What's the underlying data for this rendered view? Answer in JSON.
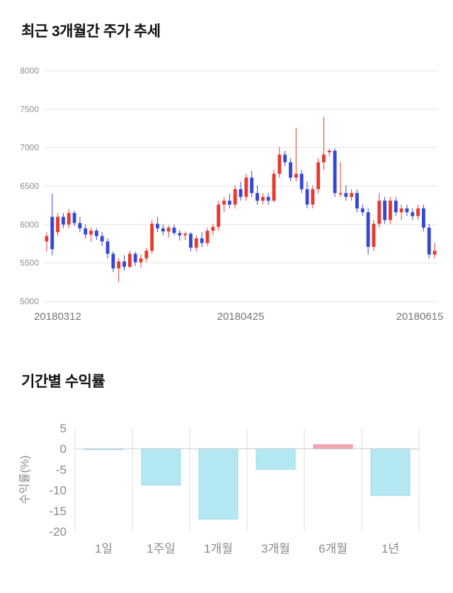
{
  "sections": {
    "price_trend": {
      "title": "최근 3개월간 주가 추세"
    },
    "returns": {
      "title": "기간별 수익률"
    }
  },
  "chart_data": [
    {
      "type": "candlestick",
      "title": "최근 3개월간 주가 추세",
      "ylim": [
        5000,
        8000
      ],
      "yticks": [
        8000,
        7500,
        7000,
        6500,
        6000,
        5500,
        5000
      ],
      "xtick_labels": [
        "20180312",
        "20180425",
        "20180615"
      ],
      "xtick_positions": [
        0.035,
        0.5,
        0.955
      ],
      "up_color": "#e8392f",
      "down_color": "#3547d6",
      "grid_color": "#e4e4e4",
      "axis_text_color": "#8e8e8e",
      "xaxis_text_color": "#777777",
      "candles_ohlc": [
        [
          5780,
          5900,
          5650,
          5850
        ],
        [
          6100,
          6400,
          5600,
          5680
        ],
        [
          5900,
          6150,
          5850,
          6100
        ],
        [
          6100,
          6150,
          5950,
          6000
        ],
        [
          6000,
          6200,
          5950,
          6150
        ],
        [
          6150,
          6180,
          5980,
          6020
        ],
        [
          6020,
          6100,
          5900,
          5950
        ],
        [
          5950,
          6000,
          5820,
          5870
        ],
        [
          5870,
          5960,
          5780,
          5920
        ],
        [
          5920,
          5950,
          5800,
          5850
        ],
        [
          5850,
          5900,
          5720,
          5780
        ],
        [
          5780,
          5820,
          5560,
          5620
        ],
        [
          5620,
          5650,
          5380,
          5430
        ],
        [
          5430,
          5560,
          5250,
          5520
        ],
        [
          5520,
          5600,
          5400,
          5450
        ],
        [
          5450,
          5660,
          5430,
          5620
        ],
        [
          5620,
          5650,
          5460,
          5510
        ],
        [
          5510,
          5610,
          5440,
          5560
        ],
        [
          5560,
          5700,
          5510,
          5660
        ],
        [
          5660,
          6060,
          5620,
          6010
        ],
        [
          6010,
          6100,
          5900,
          5950
        ],
        [
          5950,
          6000,
          5860,
          5910
        ],
        [
          5910,
          5990,
          5830,
          5960
        ],
        [
          5960,
          6000,
          5860,
          5890
        ],
        [
          5890,
          5930,
          5790,
          5860
        ],
        [
          5860,
          5910,
          5800,
          5880
        ],
        [
          5880,
          5900,
          5650,
          5700
        ],
        [
          5700,
          5860,
          5650,
          5820
        ],
        [
          5820,
          5900,
          5710,
          5760
        ],
        [
          5760,
          5960,
          5720,
          5920
        ],
        [
          5920,
          6010,
          5860,
          5970
        ],
        [
          5970,
          6310,
          5920,
          6260
        ],
        [
          6260,
          6360,
          6160,
          6310
        ],
        [
          6310,
          6400,
          6210,
          6260
        ],
        [
          6260,
          6510,
          6210,
          6460
        ],
        [
          6460,
          6560,
          6310,
          6360
        ],
        [
          6360,
          6660,
          6310,
          6610
        ],
        [
          6610,
          6700,
          6360,
          6410
        ],
        [
          6410,
          6510,
          6260,
          6310
        ],
        [
          6310,
          6410,
          6260,
          6360
        ],
        [
          6360,
          6410,
          6260,
          6310
        ],
        [
          6310,
          6710,
          6290,
          6660
        ],
        [
          6660,
          7010,
          6610,
          6910
        ],
        [
          6910,
          6960,
          6760,
          6810
        ],
        [
          6810,
          6860,
          6560,
          6610
        ],
        [
          6610,
          7260,
          6560,
          6660
        ],
        [
          6660,
          6710,
          6410,
          6460
        ],
        [
          6460,
          6560,
          6210,
          6260
        ],
        [
          6260,
          6510,
          6210,
          6460
        ],
        [
          6460,
          6860,
          6410,
          6810
        ],
        [
          6810,
          7400,
          6710,
          6910
        ],
        [
          6940,
          6990,
          6890,
          6960
        ],
        [
          6960,
          6990,
          6360,
          6410
        ],
        [
          6410,
          6810,
          6360,
          6410
        ],
        [
          6410,
          6510,
          6310,
          6360
        ],
        [
          6360,
          6460,
          6310,
          6410
        ],
        [
          6410,
          6460,
          6160,
          6210
        ],
        [
          6210,
          6260,
          6110,
          6160
        ],
        [
          6160,
          6210,
          5610,
          5710
        ],
        [
          5710,
          6060,
          5660,
          6010
        ],
        [
          6010,
          6410,
          5960,
          6310
        ],
        [
          6310,
          6360,
          6010,
          6060
        ],
        [
          6060,
          6360,
          6010,
          6310
        ],
        [
          6310,
          6360,
          6110,
          6160
        ],
        [
          6160,
          6260,
          6060,
          6210
        ],
        [
          6210,
          6260,
          6110,
          6160
        ],
        [
          6160,
          6210,
          6060,
          6110
        ],
        [
          6110,
          6260,
          6060,
          6210
        ],
        [
          6210,
          6260,
          5910,
          5960
        ],
        [
          5960,
          6010,
          5560,
          5610
        ],
        [
          5610,
          5760,
          5560,
          5660
        ]
      ]
    },
    {
      "type": "bar",
      "title": "기간별 수익률",
      "ylabel": "수익률(%)",
      "categories": [
        "1일",
        "1주일",
        "1개월",
        "3개월",
        "6개월",
        "1년"
      ],
      "values": [
        -0.2,
        -8.8,
        -17.0,
        -5.0,
        1.0,
        -11.3
      ],
      "ylim": [
        -20,
        5
      ],
      "yticks": [
        5,
        0,
        -5,
        -10,
        -15,
        -20
      ],
      "negative_color": "#b3e7f2",
      "negative_stroke": "#9fdcea",
      "positive_color": "#f4a7b3",
      "positive_stroke": "#eb95a3",
      "grid_color": "#dddddd",
      "zero_line_color": "#c8c8c8",
      "axis_text_color": "#8a8a8a"
    }
  ]
}
